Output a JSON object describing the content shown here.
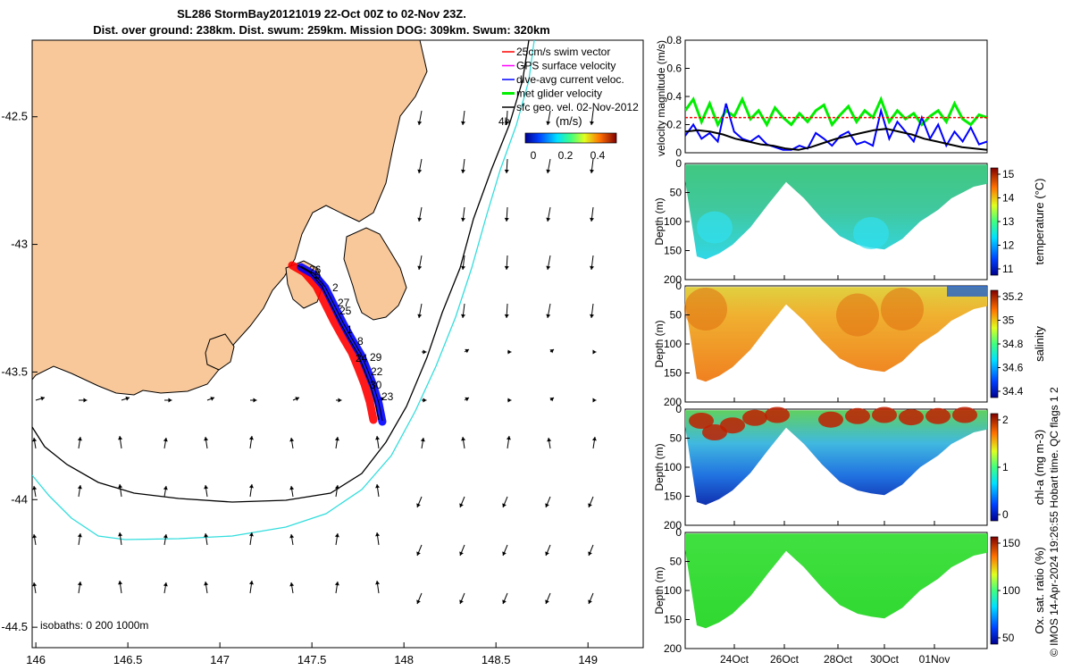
{
  "title": {
    "line1": "SL286 StormBay20121019 22-Oct 00Z to 02-Nov 23Z.",
    "line2": "Dist. over ground: 238km. Dist. swum: 259km. Mission DOG: 309km. Swum: 320km"
  },
  "colors": {
    "land": "#f8c89a",
    "isobath_200": "#000000",
    "isobath_1000": "#33dddd",
    "track_red": "#ff0000",
    "track_blue": "#0000ff",
    "green": "#00ee00"
  },
  "map": {
    "xticks": [
      "146",
      "146.5",
      "147",
      "147.5",
      "148",
      "148.5",
      "149"
    ],
    "yticks": [
      "-42.5",
      "-43",
      "-43.5",
      "-44",
      "-44.5"
    ],
    "xlim": [
      145.98,
      149.3
    ],
    "ylim": [
      -44.58,
      -42.2
    ],
    "legend": [
      {
        "label": "25cm/s swim vector",
        "color": "#ff0000"
      },
      {
        "label": "GPS surface velocity",
        "color": "#ff00ff"
      },
      {
        "label": "dive-avg current veloc.",
        "color": "#0000ff"
      },
      {
        "label": "met glider velocity",
        "color": "#00ee00"
      },
      {
        "label": "sfc geo. vel. 02-Nov-2012",
        "color": "#000000"
      }
    ],
    "legend_extra": "4h",
    "colorbar": {
      "unit": "(m/s)",
      "ticks": [
        "0",
        "0.2",
        "0.4"
      ]
    },
    "isobath_label": "isobaths: 0   200  1000m",
    "track_labels": [
      "26",
      "5",
      "2",
      "27",
      "25",
      "1",
      "8",
      "24",
      "29",
      "22",
      "30",
      "23"
    ]
  },
  "panels": {
    "velocity": {
      "ylabel": "velocity magnitude (m/s)",
      "yticks": [
        "0",
        "0.2",
        "0.4",
        "0.6",
        "0.8"
      ]
    },
    "depth_ylabel": "Depth (m)",
    "depth_ticks": [
      "0",
      "50",
      "100",
      "150",
      "200"
    ],
    "temperature": {
      "cbar_label": "temperature (°C)",
      "cbar_ticks": [
        "15",
        "14",
        "13",
        "12",
        "11"
      ]
    },
    "salinity": {
      "cbar_label": "salinity",
      "cbar_ticks": [
        "35.2",
        "35",
        "34.8",
        "34.6",
        "34.4"
      ]
    },
    "chla": {
      "cbar_label": "chl-a (mg m-3)",
      "cbar_ticks": [
        "2",
        "1",
        "0"
      ]
    },
    "oxygen": {
      "cbar_label": "Ox. sat. ratio (%)",
      "cbar_ticks": [
        "150",
        "100",
        "50"
      ]
    },
    "xticks": [
      "24Oct",
      "26Oct",
      "28Oct",
      "30Oct",
      "01Nov"
    ]
  },
  "footer": "© IMOS 14-Apr-2024 19:26:55 Hobart time. QC flags 1  2",
  "chart_data": [
    {
      "type": "line",
      "title": "",
      "xlabel": "",
      "ylabel": "velocity magnitude (m/s)",
      "ylim": [
        0,
        0.8
      ],
      "series": [
        {
          "name": "met glider velocity",
          "color": "#00ee00",
          "values": [
            0.3,
            0.38,
            0.22,
            0.35,
            0.2,
            0.3,
            0.26,
            0.38,
            0.24,
            0.3,
            0.2,
            0.32,
            0.25,
            0.2,
            0.28,
            0.22,
            0.3,
            0.34,
            0.2,
            0.27,
            0.33,
            0.22,
            0.3,
            0.25,
            0.38,
            0.22,
            0.3,
            0.24,
            0.28,
            0.2,
            0.26,
            0.3,
            0.22,
            0.35,
            0.24,
            0.2,
            0.27,
            0.25
          ]
        },
        {
          "name": "dive-avg current veloc.",
          "color": "#0000ff",
          "values": [
            0.12,
            0.2,
            0.1,
            0.14,
            0.08,
            0.35,
            0.15,
            0.1,
            0.08,
            0.12,
            0.06,
            0.04,
            0.02,
            0.02,
            0.05,
            0.03,
            0.14,
            0.1,
            0.05,
            0.12,
            0.15,
            0.06,
            0.08,
            0.05,
            0.3,
            0.1,
            0.22,
            0.15,
            0.08,
            0.25,
            0.1,
            0.2,
            0.05,
            0.15,
            0.08,
            0.18,
            0.06,
            0.08
          ]
        },
        {
          "name": "25cm/s swim vector",
          "color": "#ff0000",
          "style": "dashed",
          "values": [
            0.25,
            0.25,
            0.25,
            0.25,
            0.25,
            0.25,
            0.25,
            0.25,
            0.25,
            0.25,
            0.25,
            0.25,
            0.25,
            0.25,
            0.25,
            0.25,
            0.25,
            0.25,
            0.25,
            0.25,
            0.25,
            0.25,
            0.25,
            0.25,
            0.25,
            0.25,
            0.25,
            0.25,
            0.25,
            0.25,
            0.25,
            0.25,
            0.25,
            0.25,
            0.25,
            0.25,
            0.25,
            0.25
          ]
        },
        {
          "name": "sfc geo. vel.",
          "color": "#000000",
          "values": [
            0.15,
            0.16,
            0.15,
            0.13,
            0.1,
            0.08,
            0.06,
            0.05,
            0.03,
            0.02,
            0.04,
            0.07,
            0.1,
            0.12,
            0.14,
            0.16,
            0.17,
            0.15,
            0.13,
            0.1,
            0.08,
            0.06,
            0.04,
            0.03,
            0.02
          ]
        }
      ]
    },
    {
      "type": "heatmap",
      "title": "",
      "ylabel": "Depth (m)",
      "ylim": [
        200,
        0
      ],
      "colorbar_label": "temperature (°C)",
      "colorbar_range": [
        10.5,
        15.3
      ],
      "xticks": [
        "24Oct",
        "26Oct",
        "28Oct",
        "30Oct",
        "01Nov"
      ]
    },
    {
      "type": "heatmap",
      "title": "",
      "ylabel": "Depth (m)",
      "ylim": [
        200,
        0
      ],
      "colorbar_label": "salinity",
      "colorbar_range": [
        34.35,
        35.3
      ],
      "xticks": [
        "24Oct",
        "26Oct",
        "28Oct",
        "30Oct",
        "01Nov"
      ]
    },
    {
      "type": "heatmap",
      "title": "",
      "ylabel": "Depth (m)",
      "ylim": [
        200,
        0
      ],
      "colorbar_label": "chl-a (mg m-3)",
      "colorbar_range": [
        0,
        2
      ],
      "xticks": [
        "24Oct",
        "26Oct",
        "28Oct",
        "30Oct",
        "01Nov"
      ]
    },
    {
      "type": "heatmap",
      "title": "",
      "ylabel": "Depth (m)",
      "ylim": [
        200,
        0
      ],
      "colorbar_label": "Ox. sat. ratio (%)",
      "colorbar_range": [
        20,
        175
      ],
      "xticks": [
        "24Oct",
        "26Oct",
        "28Oct",
        "30Oct",
        "01Nov"
      ]
    }
  ]
}
